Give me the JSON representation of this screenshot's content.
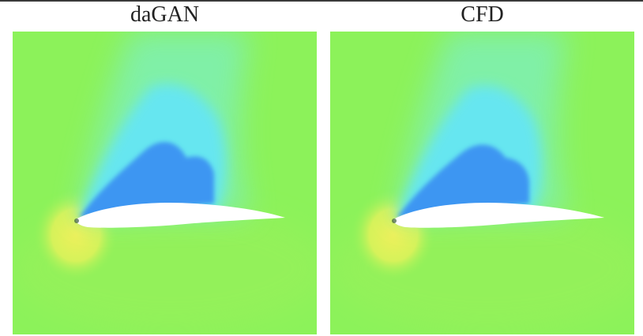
{
  "panels": [
    {
      "title": "daGAN"
    },
    {
      "title": "CFD"
    }
  ],
  "colors": {
    "freestream": "#8cf25a",
    "low_pressure_core": "#3e96f2",
    "low_pressure_outer": "#66e6f0",
    "stagnation_high": "#eef05a",
    "airfoil": "#ffffff"
  }
}
